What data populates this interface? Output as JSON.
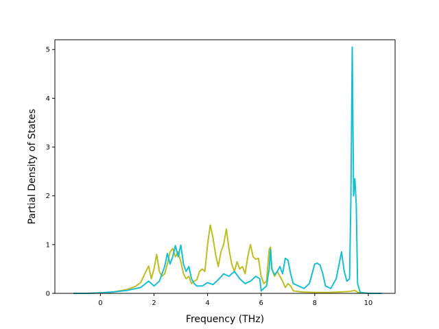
{
  "chart_data": {
    "type": "line",
    "title": "",
    "xlabel": "Frequency (THz)",
    "ylabel": "Partial Density of States",
    "xlim": [
      -1.7,
      11.0
    ],
    "ylim": [
      0,
      5.2
    ],
    "xticks": [
      0,
      2,
      4,
      6,
      8,
      10
    ],
    "xtick_labels": [
      "0",
      "2",
      "4",
      "6",
      "8",
      "10"
    ],
    "yticks": [
      0,
      1,
      2,
      3,
      4,
      5
    ],
    "ytick_labels": [
      "0",
      "1",
      "2",
      "3",
      "4",
      "5"
    ],
    "grid": false,
    "legend": "none",
    "series": [
      {
        "color": "#bcbd22",
        "x": [
          -1.0,
          -0.5,
          0.0,
          0.5,
          1.0,
          1.3,
          1.5,
          1.7,
          1.8,
          1.9,
          2.0,
          2.1,
          2.2,
          2.3,
          2.4,
          2.5,
          2.6,
          2.7,
          2.8,
          2.9,
          3.0,
          3.1,
          3.2,
          3.3,
          3.4,
          3.5,
          3.6,
          3.7,
          3.8,
          3.9,
          4.0,
          4.1,
          4.2,
          4.3,
          4.4,
          4.5,
          4.6,
          4.7,
          4.8,
          4.9,
          5.0,
          5.1,
          5.2,
          5.3,
          5.4,
          5.5,
          5.6,
          5.7,
          5.8,
          5.9,
          6.0,
          6.1,
          6.2,
          6.3,
          6.35,
          6.4,
          6.5,
          6.6,
          6.7,
          6.8,
          6.9,
          7.0,
          7.1,
          7.2,
          7.5,
          8.0,
          8.5,
          9.0,
          9.3,
          9.5,
          9.6,
          10.0,
          10.5
        ],
        "y": [
          0.0,
          0.0,
          0.01,
          0.03,
          0.08,
          0.14,
          0.22,
          0.45,
          0.56,
          0.3,
          0.5,
          0.8,
          0.45,
          0.35,
          0.4,
          0.6,
          0.85,
          0.92,
          0.75,
          0.85,
          0.65,
          0.4,
          0.3,
          0.35,
          0.2,
          0.25,
          0.28,
          0.45,
          0.5,
          0.45,
          1.0,
          1.4,
          1.15,
          0.8,
          0.55,
          0.85,
          1.0,
          1.32,
          0.9,
          0.6,
          0.45,
          0.65,
          0.5,
          0.55,
          0.4,
          0.75,
          1.0,
          0.75,
          0.7,
          0.72,
          0.35,
          0.2,
          0.25,
          0.9,
          0.95,
          0.5,
          0.35,
          0.45,
          0.35,
          0.25,
          0.12,
          0.2,
          0.15,
          0.05,
          0.03,
          0.02,
          0.02,
          0.03,
          0.04,
          0.06,
          0.02,
          0.0,
          0.0
        ]
      },
      {
        "color": "#17becf",
        "x": [
          -1.0,
          -0.5,
          0.0,
          0.5,
          1.0,
          1.5,
          1.8,
          2.0,
          2.2,
          2.4,
          2.5,
          2.6,
          2.7,
          2.8,
          2.9,
          3.0,
          3.1,
          3.2,
          3.3,
          3.4,
          3.5,
          3.6,
          3.8,
          4.0,
          4.2,
          4.4,
          4.6,
          4.8,
          5.0,
          5.2,
          5.4,
          5.6,
          5.8,
          5.95,
          6.0,
          6.2,
          6.3,
          6.35,
          6.4,
          6.5,
          6.6,
          6.7,
          6.8,
          6.9,
          7.0,
          7.1,
          7.2,
          7.4,
          7.6,
          7.8,
          8.0,
          8.1,
          8.2,
          8.3,
          8.4,
          8.6,
          8.8,
          9.0,
          9.1,
          9.2,
          9.3,
          9.35,
          9.4,
          9.45,
          9.5,
          9.55,
          9.6,
          9.7,
          10.0,
          10.5
        ],
        "y": [
          0.0,
          0.0,
          0.01,
          0.03,
          0.06,
          0.12,
          0.25,
          0.15,
          0.25,
          0.55,
          0.82,
          0.6,
          0.75,
          0.98,
          0.75,
          0.99,
          0.6,
          0.45,
          0.55,
          0.3,
          0.2,
          0.15,
          0.15,
          0.22,
          0.18,
          0.28,
          0.4,
          0.35,
          0.45,
          0.3,
          0.2,
          0.25,
          0.35,
          0.3,
          0.05,
          0.15,
          0.5,
          0.9,
          0.5,
          0.38,
          0.45,
          0.55,
          0.4,
          0.72,
          0.68,
          0.4,
          0.2,
          0.15,
          0.1,
          0.2,
          0.6,
          0.62,
          0.58,
          0.4,
          0.15,
          0.1,
          0.3,
          0.85,
          0.45,
          0.25,
          0.3,
          2.0,
          5.05,
          2.0,
          2.35,
          1.8,
          0.2,
          0.02,
          0.0,
          0.0
        ]
      }
    ]
  }
}
